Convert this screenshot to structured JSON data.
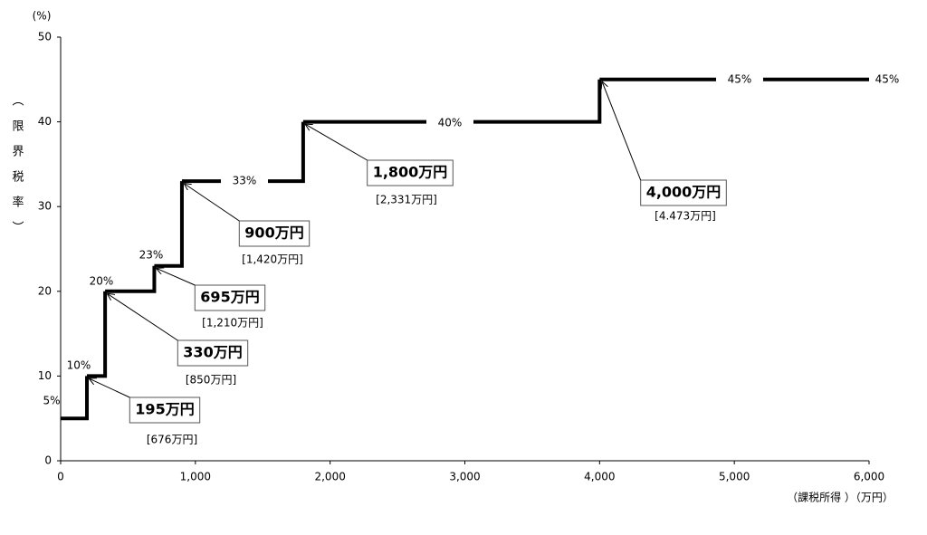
{
  "chart_data": {
    "type": "step",
    "y_unit": "(%)",
    "y_label": "（限界税率）",
    "x_label": "（課税所得 ）（万円）",
    "x": [
      0,
      195,
      330,
      695,
      900,
      1800,
      4000,
      6000
    ],
    "values": [
      5,
      10,
      20,
      23,
      33,
      40,
      45,
      45
    ],
    "value_labels": [
      "5%",
      "10%",
      "20%",
      "23%",
      "33%",
      "40%",
      "45%",
      "45%"
    ],
    "color": "#000000",
    "xlim": [
      0,
      6000
    ],
    "xticks": [
      0,
      {
        "value": 1000,
        "label": "1,000"
      },
      {
        "value": 2000,
        "label": "2,000"
      },
      {
        "value": 3000,
        "label": "3,000"
      },
      {
        "value": 4000,
        "label": "4,000"
      },
      {
        "value": 5000,
        "label": "5,000"
      },
      {
        "value": 6000,
        "label": "6,000"
      }
    ],
    "ylim": [
      0,
      50
    ],
    "yticks": [
      0,
      10,
      20,
      30,
      40,
      50
    ],
    "annotations": [
      {
        "text": "195万円",
        "note": "[676万円]"
      },
      {
        "text": "330万円",
        "note": "[850万円]"
      },
      {
        "text": "695万円",
        "note": "[1,210万円]"
      },
      {
        "text": "900万円",
        "note": "[1,420万円]"
      },
      {
        "text": "1,800万円",
        "note": "[2,331万円]"
      },
      {
        "text": "4,000万円",
        "note": "[4.473万円]"
      }
    ]
  }
}
